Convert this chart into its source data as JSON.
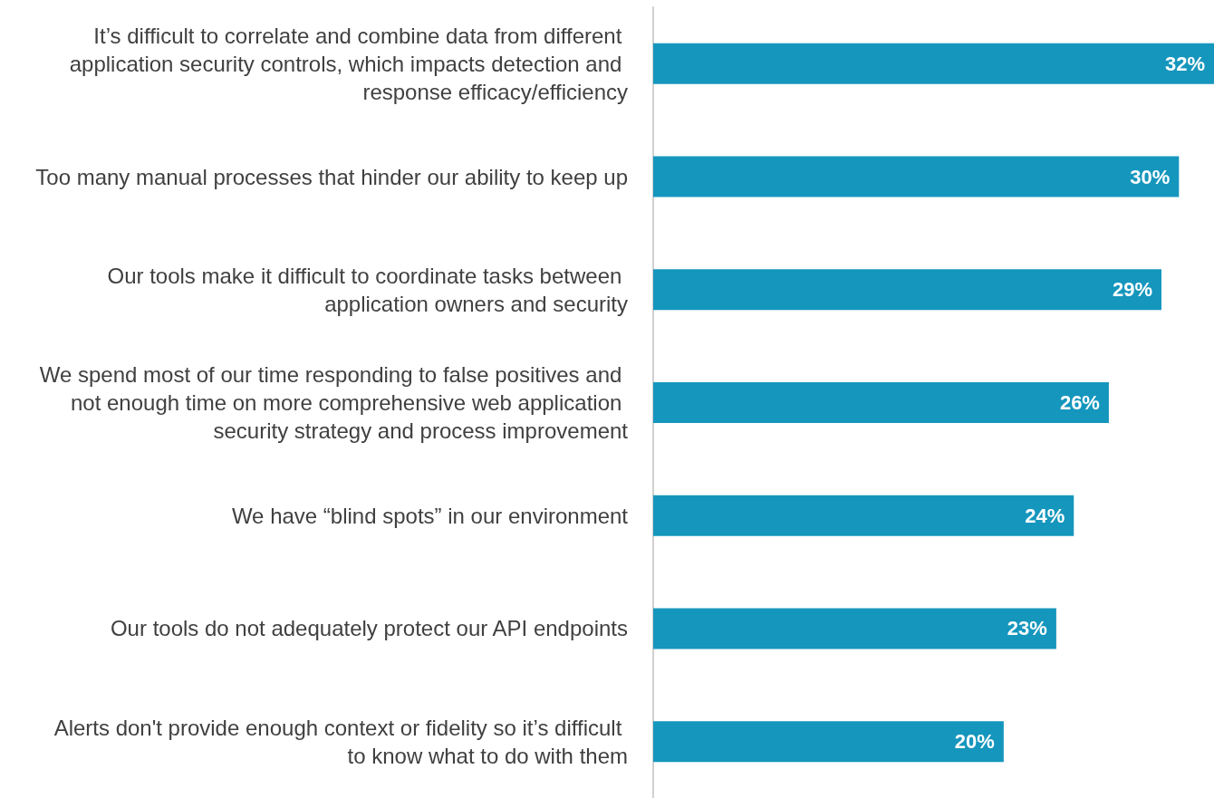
{
  "chart_data": {
    "type": "bar",
    "orientation": "horizontal",
    "categories": [
      "It’s difficult to correlate and combine data from different application security controls, which impacts detection and response efficacy/efficiency",
      "Too many manual processes that hinder our ability to keep up",
      "Our tools make it difficult to coordinate tasks between application owners and security",
      "We spend most of our time responding to false positives and not enough time on more comprehensive web application security strategy and process improvement",
      "We have “blind spots” in our environment",
      "Our tools do not adequately protect our API endpoints",
      "Alerts don't provide enough context or fidelity so it’s difficult to know what to do with them"
    ],
    "values": [
      32,
      30,
      29,
      26,
      24,
      23,
      20
    ],
    "value_labels": [
      "32%",
      "30%",
      "29%",
      "26%",
      "24%",
      "23%",
      "20%"
    ],
    "color": "#1596bd"
  }
}
